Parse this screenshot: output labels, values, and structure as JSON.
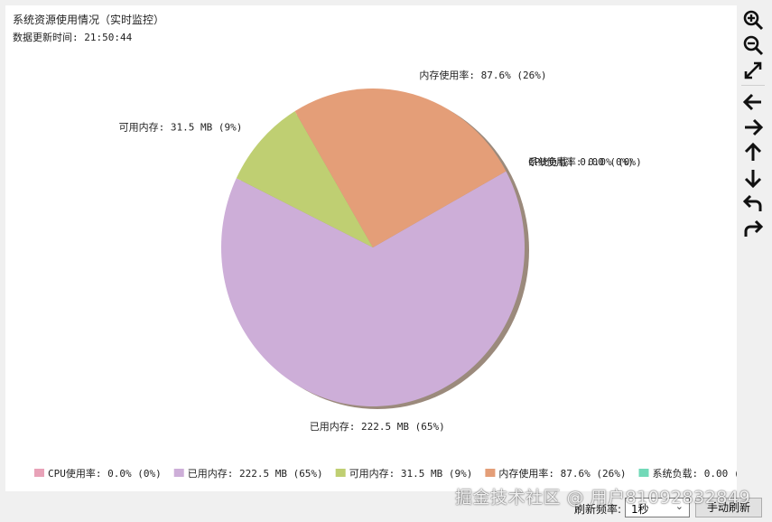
{
  "title": "系统资源使用情况（实时监控）",
  "subtitle": "数据更新时间: 21:50:44",
  "chart_data": {
    "type": "pie",
    "slices": [
      {
        "label": "CPU使用率: 0.0% (0%)",
        "value": 0.0,
        "color": "#e8a2b8"
      },
      {
        "label": "已用内存: 222.5 MB (65%)",
        "value": 222.5,
        "color": "#cdaed8"
      },
      {
        "label": "可用内存: 31.5 MB (9%)",
        "value": 31.5,
        "color": "#bfcf72"
      },
      {
        "label": "内存使用率: 87.6% (26%)",
        "value": 87.6,
        "color": "#e49e78"
      },
      {
        "label": "系统负载: 0.00 (0%)",
        "value": 0.0,
        "color": "#72d9b8"
      }
    ],
    "legend_position": "bottom"
  },
  "toolbar": {
    "icons": [
      "zoom-in-icon",
      "zoom-out-icon",
      "fit-icon",
      "arrow-left-icon",
      "arrow-right-icon",
      "arrow-up-icon",
      "arrow-down-icon",
      "undo-icon",
      "redo-icon"
    ]
  },
  "controls": {
    "rate_label": "刷新频率:",
    "rate_value": "1秒",
    "refresh_label": "手动刷新"
  },
  "watermark": "掘金技术社区 @ 用户81092832849"
}
